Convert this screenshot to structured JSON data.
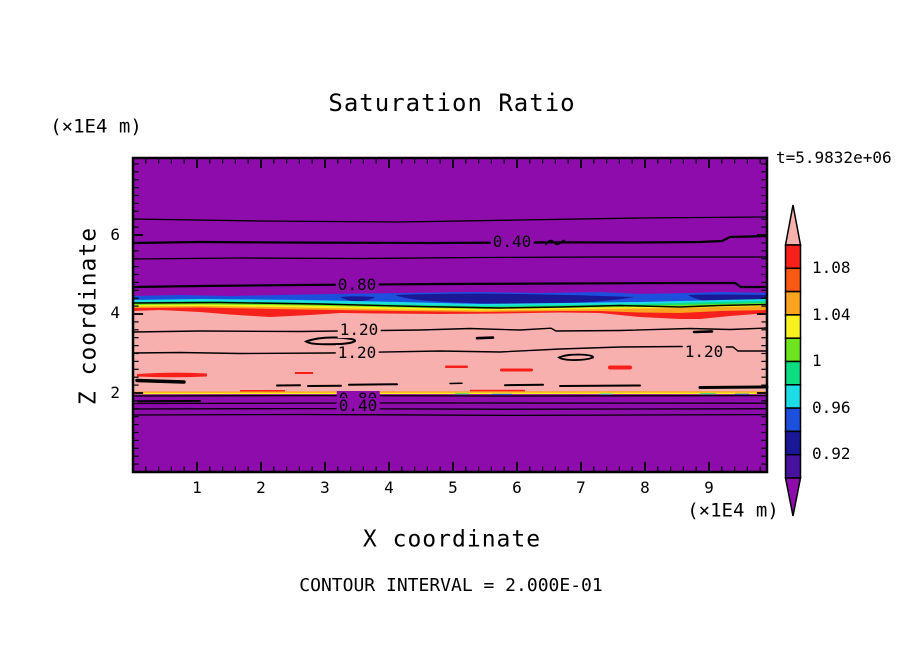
{
  "title": "Saturation Ratio",
  "annotations": {
    "time": "t=5.9832e+06",
    "contour_interval_note": "CONTOUR INTERVAL = 2.000E-01",
    "y_axis_unit": "(×1E4 m)",
    "x_axis_unit": "(×1E4 m)"
  },
  "chart_data": {
    "type": "heatmap",
    "subtype": "filled-contour-plot",
    "title": "Saturation Ratio",
    "xlabel": "X coordinate",
    "ylabel": "Z coordinate",
    "x_unit": "(×1E4 m)",
    "y_unit": "(×1E4 m)",
    "time_annotation": "t=5.9832e+06",
    "contour_interval": 0.2,
    "contour_interval_label": "CONTOUR INTERVAL = 2.000E-01",
    "xaxis": {
      "min": 0,
      "max": 9.9,
      "minor_step": 0.2,
      "major_ticks": [
        1,
        2,
        3,
        4,
        5,
        6,
        7,
        8,
        9
      ],
      "tick_labels": [
        "1",
        "2",
        "3",
        "4",
        "5",
        "6",
        "7",
        "8",
        "9"
      ]
    },
    "yaxis": {
      "min": 0,
      "max": 7.95,
      "minor_step": 0.2,
      "major_ticks": [
        2,
        4,
        6
      ],
      "tick_labels": [
        "2",
        "4",
        "6"
      ]
    },
    "palette": {
      "pink": "#F8B0AE",
      "red": "#F8201A",
      "orangered": "#F85A14",
      "orange": "#F8A41E",
      "yellow": "#F8F020",
      "chartreuse": "#6EE41E",
      "springgreen": "#0EDC80",
      "cyan": "#1EDCE6",
      "blue": "#1C50DC",
      "navy": "#1A1896",
      "darkviolet": "#46129E",
      "purple": "#8E0CAC",
      "line": "#000000"
    },
    "colorbar": {
      "orientation": "vertical",
      "above_range_color": "#F8B0AE",
      "below_range_color": "#8E0CAC",
      "segments": [
        {
          "color": "#F8201A",
          "range": [
            1.08,
            1.1
          ]
        },
        {
          "color": "#F85A14",
          "range": [
            1.06,
            1.08
          ]
        },
        {
          "color": "#F8A41E",
          "range": [
            1.04,
            1.06
          ]
        },
        {
          "color": "#F8F020",
          "range": [
            1.02,
            1.04
          ]
        },
        {
          "color": "#6EE41E",
          "range": [
            1.0,
            1.02
          ]
        },
        {
          "color": "#0EDC80",
          "range": [
            0.98,
            1.0
          ]
        },
        {
          "color": "#1EDCE6",
          "range": [
            0.96,
            0.98
          ]
        },
        {
          "color": "#1C50DC",
          "range": [
            0.94,
            0.96
          ]
        },
        {
          "color": "#1A1896",
          "range": [
            0.92,
            0.94
          ]
        },
        {
          "color": "#46129E",
          "range": [
            0.9,
            0.92
          ]
        }
      ],
      "tick_labels": [
        "1.08",
        "1.04",
        "1",
        "0.96",
        "0.92"
      ]
    },
    "field_bands": [
      {
        "z_range": [
          4.2,
          7.95
        ],
        "value": "< 0.90",
        "color": "#8E0CAC",
        "note": "upper purple background"
      },
      {
        "z_range": [
          4.0,
          4.2
        ],
        "value": "0.90 to 1.10",
        "note": "thin rainbow transition band navy-blue-cyan-green-yellow-orange-red"
      },
      {
        "z_range": [
          2.05,
          4.0
        ],
        "value": "> 1.10",
        "color": "#F8B0AE",
        "note": "pink band with small red streaks"
      },
      {
        "z_range": [
          1.95,
          2.05
        ],
        "value": "1.10 to 0.90",
        "note": "very thin rainbow transition stripe"
      },
      {
        "z_range": [
          0,
          1.95
        ],
        "value": "< 0.90",
        "color": "#8E0CAC",
        "note": "lower purple background with stacked contour lines"
      }
    ],
    "contour_line_labels": [
      {
        "text": "0.40",
        "x": 5.9,
        "z": 5.8
      },
      {
        "text": "0.80",
        "x": 3.5,
        "z": 4.7
      },
      {
        "text": "1.20",
        "x": 3.5,
        "z": 3.6
      },
      {
        "text": "1.20",
        "x": 3.5,
        "z": 3.0
      },
      {
        "text": "1.20",
        "x": 8.9,
        "z": 3.0
      },
      {
        "text": "0.80",
        "x": 3.5,
        "z": 1.85
      },
      {
        "text": "0.40",
        "x": 3.5,
        "z": 1.65
      }
    ]
  }
}
